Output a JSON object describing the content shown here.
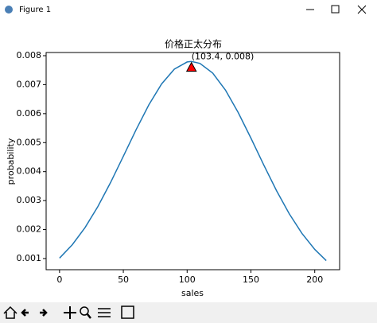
{
  "window": {
    "title": "Figure 1"
  },
  "chart_data": {
    "type": "line",
    "title": "价格正太分布",
    "x_label": "sales",
    "y_label": "probability",
    "x": [
      0,
      10,
      20,
      30,
      40,
      50,
      60,
      70,
      80,
      90,
      100,
      103.4,
      110,
      120,
      130,
      140,
      150,
      160,
      170,
      180,
      190,
      200,
      209
    ],
    "series": [
      {
        "color": "#1f77b4",
        "values": [
          0.001015,
          0.001477,
          0.002069,
          0.002792,
          0.003624,
          0.004528,
          0.005446,
          0.006305,
          0.007026,
          0.007537,
          0.007783,
          0.0078,
          0.007735,
          0.007401,
          0.006815,
          0.006041,
          0.005155,
          0.004234,
          0.003347,
          0.002547,
          0.001866,
          0.001316,
          0.00093
        ]
      }
    ],
    "annotation": {
      "text": "(103.4, 0.008)",
      "x": 103.4,
      "y": 0.0076,
      "color": "#ff0000"
    },
    "xlim": [
      -10.5,
      219.5
    ],
    "xticks": [
      0,
      50,
      100,
      150,
      200
    ],
    "ylim": [
      0.000615,
      0.00811
    ],
    "yticks": [
      0.001,
      0.002,
      0.003,
      0.004,
      0.005,
      0.006,
      0.007,
      0.008
    ]
  }
}
